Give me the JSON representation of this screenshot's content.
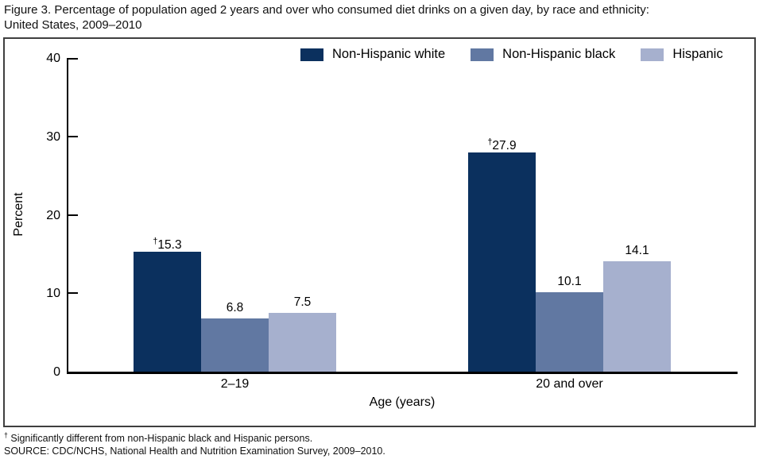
{
  "title": {
    "line1": "Figure 3. Percentage of population aged 2 years and over who consumed diet drinks on a given day, by race and ethnicity:",
    "line2": "United States, 2009–2010"
  },
  "chart_data": {
    "type": "bar",
    "title": "Percentage of population aged 2 years and over who consumed diet drinks on a given day, by race and ethnicity: United States, 2009–2010",
    "categories": [
      "2–19",
      "20 and over"
    ],
    "series": [
      {
        "name": "Non-Hispanic white",
        "color": "#0b305e",
        "values": [
          15.3,
          27.9
        ],
        "labels": [
          "†15.3",
          "†27.9"
        ]
      },
      {
        "name": "Non-Hispanic black",
        "color": "#6178a2",
        "values": [
          6.8,
          10.1
        ],
        "labels": [
          "6.8",
          "10.1"
        ]
      },
      {
        "name": "Hispanic",
        "color": "#a6b0ce",
        "values": [
          7.5,
          14.1
        ],
        "labels": [
          "7.5",
          "14.1"
        ]
      }
    ],
    "xlabel": "Age (years)",
    "ylabel": "Percent",
    "ylim": [
      0,
      40
    ],
    "yticks": [
      0,
      10,
      20,
      30,
      40
    ],
    "legend_position": "top",
    "grid": false
  },
  "footnotes": {
    "dagger_symbol": "†",
    "dagger_text": "Significantly different from non-Hispanic black and Hispanic persons.",
    "source": "SOURCE: CDC/NCHS, National Health and Nutrition Examination Survey, 2009–2010."
  }
}
